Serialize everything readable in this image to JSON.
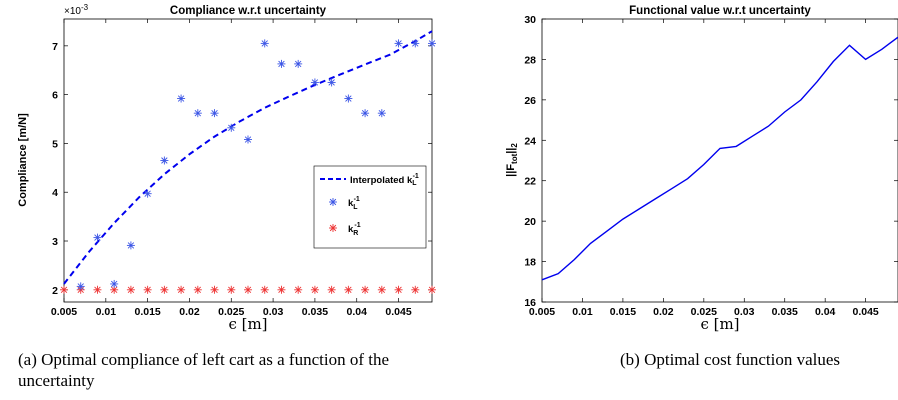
{
  "chart_data": [
    {
      "type": "scatter",
      "title": "Compliance w.r.t uncertainty",
      "xlabel": "ϵ [m]",
      "ylabel": "Compliance [m/N]",
      "y_exponent_label": "×10",
      "y_exponent_power": "-3",
      "xlim": [
        0.005,
        0.049
      ],
      "ylim": [
        0.00175,
        0.00755
      ],
      "xticks": [
        0.005,
        0.01,
        0.015,
        0.02,
        0.025,
        0.03,
        0.035,
        0.04,
        0.045
      ],
      "xtick_labels": [
        "0.005",
        "0.01",
        "0.015",
        "0.02",
        "0.025",
        "0.03",
        "0.035",
        "0.04",
        "0.045"
      ],
      "yticks": [
        0.002,
        0.003,
        0.004,
        0.005,
        0.006,
        0.007
      ],
      "ytick_labels": [
        "2",
        "3",
        "4",
        "5",
        "6",
        "7"
      ],
      "grid": false,
      "legend_position": "middle-right",
      "series": [
        {
          "name": "Interpolated k",
          "name_sub": "L",
          "name_sup": "-1",
          "kind": "dashed-line",
          "color": "#0000ee",
          "x": [
            0.005,
            0.008,
            0.011,
            0.014,
            0.017,
            0.02,
            0.023,
            0.026,
            0.029,
            0.032,
            0.035,
            0.038,
            0.041,
            0.044,
            0.047,
            0.049
          ],
          "y": [
            0.00212,
            0.00278,
            0.00337,
            0.0039,
            0.00437,
            0.00478,
            0.00514,
            0.00545,
            0.00573,
            0.00597,
            0.0062,
            0.00641,
            0.00662,
            0.00682,
            0.0071,
            0.0073
          ]
        },
        {
          "name": "k",
          "name_sub": "L",
          "name_sup": "-1",
          "kind": "asterisk",
          "color": "#3b55e6",
          "x": [
            0.007,
            0.009,
            0.011,
            0.013,
            0.015,
            0.017,
            0.019,
            0.021,
            0.023,
            0.025,
            0.027,
            0.029,
            0.031,
            0.033,
            0.035,
            0.037,
            0.039,
            0.041,
            0.043,
            0.045,
            0.047,
            0.049
          ],
          "y": [
            0.00207,
            0.00307,
            0.00212,
            0.00291,
            0.00397,
            0.00465,
            0.00592,
            0.00562,
            0.00562,
            0.00532,
            0.00508,
            0.00705,
            0.00663,
            0.00663,
            0.00625,
            0.00625,
            0.00592,
            0.00562,
            0.00562,
            0.00705,
            0.00705,
            0.00705
          ]
        },
        {
          "name": "k",
          "name_sub": "R",
          "name_sup": "-1",
          "kind": "asterisk",
          "color": "#ee3333",
          "x": [
            0.005,
            0.007,
            0.009,
            0.011,
            0.013,
            0.015,
            0.017,
            0.019,
            0.021,
            0.023,
            0.025,
            0.027,
            0.029,
            0.031,
            0.033,
            0.035,
            0.037,
            0.039,
            0.041,
            0.043,
            0.045,
            0.047,
            0.049
          ],
          "y": [
            0.002,
            0.002,
            0.002,
            0.002,
            0.002,
            0.002,
            0.002,
            0.002,
            0.002,
            0.002,
            0.002,
            0.002,
            0.002,
            0.002,
            0.002,
            0.002,
            0.002,
            0.002,
            0.002,
            0.002,
            0.002,
            0.002,
            0.002
          ]
        }
      ]
    },
    {
      "type": "line",
      "title": "Functional value w.r.t uncertainty",
      "xlabel": "ϵ [m]",
      "ylabel_main": "||F",
      "ylabel_sub": "tot",
      "ylabel_tail": "||",
      "ylabel_sub2": "2",
      "xlim": [
        0.005,
        0.049
      ],
      "ylim": [
        16,
        30
      ],
      "xticks": [
        0.005,
        0.01,
        0.015,
        0.02,
        0.025,
        0.03,
        0.035,
        0.04,
        0.045
      ],
      "xtick_labels": [
        "0.005",
        "0.01",
        "0.015",
        "0.02",
        "0.025",
        "0.03",
        "0.035",
        "0.04",
        "0.045"
      ],
      "yticks": [
        16,
        18,
        20,
        22,
        24,
        26,
        28,
        30
      ],
      "ytick_labels": [
        "16",
        "18",
        "20",
        "22",
        "24",
        "26",
        "28",
        "30"
      ],
      "grid": false,
      "series": [
        {
          "color": "#0000ee",
          "x": [
            0.005,
            0.007,
            0.009,
            0.011,
            0.013,
            0.015,
            0.017,
            0.019,
            0.021,
            0.023,
            0.025,
            0.027,
            0.029,
            0.031,
            0.033,
            0.035,
            0.037,
            0.039,
            0.041,
            0.043,
            0.045,
            0.047,
            0.049
          ],
          "y": [
            17.1,
            17.4,
            18.1,
            18.9,
            19.5,
            20.1,
            20.6,
            21.1,
            21.6,
            22.1,
            22.8,
            23.6,
            23.7,
            24.2,
            24.7,
            25.4,
            26.0,
            26.9,
            27.9,
            28.7,
            28.0,
            28.5,
            29.1
          ]
        }
      ]
    }
  ],
  "captions": {
    "a": "(a) Optimal compliance of left cart as a function of the uncertainty",
    "b": "(b) Optimal cost function values"
  }
}
